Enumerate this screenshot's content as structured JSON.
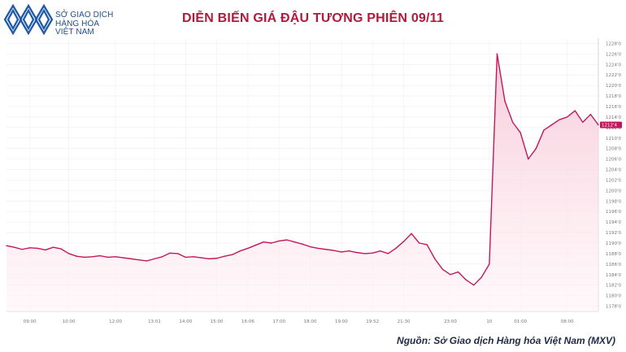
{
  "logo": {
    "line1": "SỞ GIAO DỊCH",
    "line2": "HÀNG HÓA",
    "line3": "VIỆT NAM"
  },
  "title": "DIỄN BIẾN GIÁ ĐẬU TƯƠNG PHIÊN 09/11",
  "source": "Nguồn: Sở Giao dịch Hàng hóa Việt Nam (MXV)",
  "colors": {
    "line": "#c2185b",
    "fill_top": "#f7c9d8",
    "fill_bottom": "#fff4f7",
    "title": "#b01b3b",
    "logo": "#1f4f8f"
  },
  "chart_data": {
    "type": "area",
    "title": "",
    "xlabel": "",
    "ylabel": "",
    "ylim": [
      1177,
      1229
    ],
    "y_ticks": [
      1178,
      1180,
      1182,
      1184,
      1186,
      1188,
      1190,
      1192,
      1194,
      1196,
      1198,
      1200,
      1202,
      1204,
      1206,
      1208,
      1210,
      1212,
      1214,
      1216,
      1218,
      1220,
      1222,
      1224,
      1226,
      1228
    ],
    "y_tick_labels": [
      "1178'0",
      "1180'0",
      "1182'0",
      "1184'0",
      "1186'0",
      "1188'0",
      "1190'0",
      "1192'0",
      "1194'0",
      "1196'0",
      "1198'0",
      "1200'0",
      "1202'0",
      "1204'0",
      "1206'0",
      "1208'0",
      "1210'0",
      "1212'0",
      "1214'0",
      "1216'0",
      "1218'0",
      "1220'0",
      "1222'0",
      "1224'0",
      "1226'0",
      "1228'0"
    ],
    "x_tick_labels": [
      "09:00",
      "10:00",
      "12:00",
      "13:01",
      "14:00",
      "15:00",
      "16:06",
      "17:00",
      "18:00",
      "19:00",
      "19:52",
      "21:30",
      "23:00",
      "10",
      "01:00",
      "08:00"
    ],
    "x_tick_index": [
      3,
      8,
      14,
      19,
      23,
      27,
      31,
      35,
      39,
      43,
      47,
      51,
      57,
      62,
      66,
      72
    ],
    "current_label": "1212'4",
    "current_value": 1212.5,
    "grid": true,
    "legend": "none",
    "series": [
      {
        "values": [
          1189.5,
          1189.2,
          1188.8,
          1189.1,
          1189.0,
          1188.7,
          1189.2,
          1188.9,
          1188.0,
          1187.5,
          1187.3,
          1187.4,
          1187.6,
          1187.3,
          1187.4,
          1187.2,
          1187.0,
          1186.8,
          1186.6,
          1187.0,
          1187.4,
          1188.1,
          1188.0,
          1187.3,
          1187.4,
          1187.2,
          1187.0,
          1187.1,
          1187.5,
          1187.8,
          1188.5,
          1189.0,
          1189.6,
          1190.2,
          1190.0,
          1190.4,
          1190.6,
          1190.2,
          1189.8,
          1189.3,
          1189.0,
          1188.8,
          1188.6,
          1188.3,
          1188.5,
          1188.2,
          1188.0,
          1188.1,
          1188.5,
          1188.0,
          1189.0,
          1190.3,
          1191.8,
          1190.0,
          1189.7,
          1187.0,
          1185.0,
          1184.0,
          1184.5,
          1183.0,
          1182.0,
          1183.5,
          1186.0,
          1226.0,
          1217.0,
          1213.0,
          1211.0,
          1206.0,
          1208.0,
          1211.5,
          1212.5,
          1213.5,
          1214.0,
          1215.2,
          1213.0,
          1214.5,
          1212.5
        ]
      }
    ]
  }
}
